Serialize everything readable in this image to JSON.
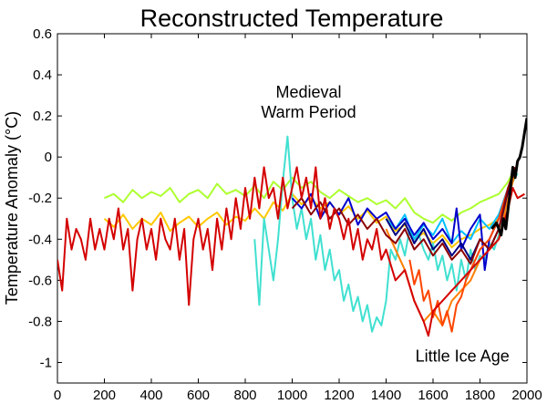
{
  "chart_data": {
    "type": "line",
    "title": "Reconstructed Temperature",
    "xlabel": "",
    "ylabel": "Temperature Anomaly (°C)",
    "xlim": [
      0,
      2000
    ],
    "ylim": [
      -1.1,
      0.6
    ],
    "x_ticks": [
      0,
      200,
      400,
      600,
      800,
      1000,
      1200,
      1400,
      1600,
      1800,
      2000
    ],
    "y_ticks": [
      -1,
      -0.8,
      -0.6,
      -0.4,
      -0.2,
      0,
      0.2,
      0.4,
      0.6
    ],
    "y_tick_labels": [
      "-1",
      "-0.8",
      "-0.6",
      "-0.4",
      "-0.2",
      "0",
      "0.2",
      "0.4",
      "0.6"
    ],
    "grid": false,
    "annotations": [
      {
        "lines": [
          "Medieval",
          "Warm Period"
        ],
        "x": 1070,
        "y": 0.29
      },
      {
        "lines": [
          "Little Ice Age"
        ],
        "x": 1725,
        "y": -0.995
      }
    ],
    "series": [
      {
        "color": "#adff2f",
        "x": [
          200,
          240,
          280,
          320,
          360,
          400,
          440,
          480,
          520,
          560,
          600,
          640,
          680,
          720,
          760,
          800,
          840,
          880,
          920,
          960,
          1000,
          1040,
          1080,
          1120,
          1160,
          1200,
          1240,
          1280,
          1320,
          1360,
          1400,
          1440,
          1480,
          1520,
          1560,
          1600,
          1640,
          1680,
          1720,
          1760,
          1800,
          1840,
          1880,
          1920,
          1950
        ],
        "values": [
          -0.2,
          -0.18,
          -0.22,
          -0.16,
          -0.2,
          -0.17,
          -0.19,
          -0.15,
          -0.22,
          -0.18,
          -0.16,
          -0.2,
          -0.13,
          -0.18,
          -0.16,
          -0.19,
          -0.14,
          -0.2,
          -0.12,
          -0.16,
          -0.1,
          -0.15,
          -0.12,
          -0.17,
          -0.2,
          -0.16,
          -0.19,
          -0.22,
          -0.2,
          -0.23,
          -0.21,
          -0.25,
          -0.2,
          -0.27,
          -0.3,
          -0.32,
          -0.28,
          -0.31,
          -0.27,
          -0.25,
          -0.22,
          -0.2,
          -0.18,
          -0.12,
          -0.05
        ]
      },
      {
        "color": "#ffc800",
        "x": [
          200,
          240,
          280,
          320,
          360,
          400,
          440,
          480,
          520,
          560,
          600,
          640,
          680,
          720,
          760,
          800,
          840,
          880,
          920,
          960,
          1000,
          1040,
          1080,
          1120,
          1160,
          1200,
          1240,
          1280,
          1320,
          1360,
          1400,
          1440,
          1480,
          1520,
          1560,
          1600,
          1640,
          1680,
          1720,
          1760,
          1800,
          1840,
          1880,
          1920,
          1950
        ],
        "values": [
          -0.3,
          -0.34,
          -0.28,
          -0.35,
          -0.3,
          -0.33,
          -0.27,
          -0.36,
          -0.32,
          -0.29,
          -0.34,
          -0.3,
          -0.27,
          -0.33,
          -0.29,
          -0.31,
          -0.25,
          -0.3,
          -0.22,
          -0.26,
          -0.18,
          -0.23,
          -0.2,
          -0.25,
          -0.22,
          -0.28,
          -0.24,
          -0.3,
          -0.26,
          -0.32,
          -0.29,
          -0.36,
          -0.33,
          -0.4,
          -0.37,
          -0.42,
          -0.38,
          -0.44,
          -0.4,
          -0.38,
          -0.35,
          -0.33,
          -0.3,
          -0.15,
          -0.05
        ]
      },
      {
        "color": "#40e0d0",
        "x": [
          840,
          860,
          880,
          900,
          920,
          940,
          960,
          980,
          1000,
          1020,
          1040,
          1060,
          1080,
          1100,
          1120,
          1140,
          1160,
          1180,
          1200,
          1220,
          1240,
          1260,
          1280,
          1300,
          1320,
          1340,
          1360,
          1380,
          1400,
          1420,
          1440,
          1460,
          1480,
          1500,
          1520,
          1540,
          1560,
          1580,
          1600,
          1620,
          1640,
          1660,
          1680,
          1700,
          1720,
          1740,
          1760,
          1780,
          1800,
          1820,
          1840,
          1860,
          1880,
          1900,
          1920,
          1940,
          1960
        ],
        "values": [
          -0.4,
          -0.72,
          -0.3,
          -0.45,
          -0.6,
          -0.4,
          -0.12,
          0.1,
          -0.2,
          -0.35,
          -0.25,
          -0.4,
          -0.3,
          -0.5,
          -0.38,
          -0.55,
          -0.45,
          -0.6,
          -0.55,
          -0.7,
          -0.62,
          -0.75,
          -0.68,
          -0.8,
          -0.72,
          -0.85,
          -0.78,
          -0.82,
          -0.7,
          -0.45,
          -0.5,
          -0.4,
          -0.48,
          -0.35,
          -0.42,
          -0.38,
          -0.45,
          -0.5,
          -0.42,
          -0.55,
          -0.48,
          -0.6,
          -0.52,
          -0.65,
          -0.5,
          -0.6,
          -0.45,
          -0.55,
          -0.48,
          -0.5,
          -0.42,
          -0.45,
          -0.38,
          -0.3,
          -0.2,
          -0.12,
          -0.08
        ]
      },
      {
        "color": "#00bfff",
        "x": [
          1400,
          1440,
          1480,
          1520,
          1560,
          1600,
          1640,
          1680,
          1720,
          1760,
          1800,
          1840,
          1880,
          1920,
          1950
        ],
        "values": [
          -0.3,
          -0.35,
          -0.28,
          -0.4,
          -0.33,
          -0.38,
          -0.3,
          -0.42,
          -0.36,
          -0.4,
          -0.3,
          -0.35,
          -0.28,
          -0.15,
          -0.05
        ]
      },
      {
        "color": "#0000cd",
        "x": [
          1000,
          1040,
          1080,
          1120,
          1160,
          1200,
          1240,
          1280,
          1320,
          1360,
          1400,
          1440,
          1480,
          1520,
          1560,
          1600,
          1640,
          1680,
          1700,
          1720,
          1760,
          1800,
          1820,
          1840,
          1880,
          1920,
          1950
        ],
        "values": [
          -0.2,
          -0.25,
          -0.18,
          -0.3,
          -0.22,
          -0.28,
          -0.2,
          -0.33,
          -0.25,
          -0.3,
          -0.27,
          -0.35,
          -0.3,
          -0.38,
          -0.32,
          -0.4,
          -0.35,
          -0.42,
          -0.25,
          -0.45,
          -0.35,
          -0.28,
          -0.55,
          -0.4,
          -0.3,
          -0.15,
          -0.05
        ]
      },
      {
        "color": "#000080",
        "x": [
          1400,
          1440,
          1480,
          1520,
          1560,
          1600,
          1640,
          1680,
          1720,
          1760,
          1800,
          1840,
          1880,
          1920,
          1950
        ],
        "values": [
          -0.3,
          -0.38,
          -0.32,
          -0.42,
          -0.35,
          -0.45,
          -0.4,
          -0.48,
          -0.42,
          -0.5,
          -0.4,
          -0.45,
          -0.35,
          -0.18,
          -0.05
        ]
      },
      {
        "color": "#ff7f00",
        "x": [
          1400,
          1440,
          1480,
          1520,
          1560,
          1600,
          1640,
          1680,
          1720,
          1760,
          1800,
          1840,
          1880,
          1920,
          1950
        ],
        "values": [
          -0.35,
          -0.45,
          -0.55,
          -0.7,
          -0.8,
          -0.75,
          -0.82,
          -0.7,
          -0.65,
          -0.6,
          -0.5,
          -0.45,
          -0.4,
          -0.2,
          -0.08
        ]
      },
      {
        "color": "#ff4500",
        "x": [
          1500,
          1520,
          1540,
          1560,
          1580,
          1600,
          1620,
          1640,
          1660,
          1680,
          1700,
          1720,
          1740,
          1760,
          1780,
          1800,
          1840,
          1880,
          1920,
          1950
        ],
        "values": [
          -0.5,
          -0.62,
          -0.55,
          -0.7,
          -0.65,
          -0.78,
          -0.7,
          -0.82,
          -0.75,
          -0.85,
          -0.72,
          -0.68,
          -0.6,
          -0.55,
          -0.5,
          -0.45,
          -0.4,
          -0.3,
          -0.15,
          -0.05
        ]
      },
      {
        "color": "#8b0000",
        "x": [
          1000,
          1040,
          1080,
          1120,
          1160,
          1200,
          1240,
          1280,
          1320,
          1360,
          1400,
          1440,
          1480,
          1520,
          1560,
          1600,
          1640,
          1680,
          1720,
          1760,
          1800,
          1840,
          1880,
          1920,
          1950
        ],
        "values": [
          -0.25,
          -0.2,
          -0.28,
          -0.22,
          -0.3,
          -0.25,
          -0.33,
          -0.28,
          -0.35,
          -0.3,
          -0.38,
          -0.42,
          -0.35,
          -0.45,
          -0.4,
          -0.48,
          -0.42,
          -0.5,
          -0.45,
          -0.52,
          -0.4,
          -0.45,
          -0.35,
          -0.15,
          -0.05
        ]
      },
      {
        "color": "#d40000",
        "x": [
          0,
          20,
          40,
          60,
          80,
          100,
          120,
          140,
          160,
          180,
          200,
          220,
          240,
          260,
          280,
          300,
          320,
          340,
          360,
          380,
          400,
          420,
          440,
          460,
          480,
          500,
          520,
          540,
          560,
          580,
          600,
          620,
          640,
          660,
          680,
          700,
          720,
          740,
          760,
          780,
          800,
          820,
          840,
          860,
          880,
          900,
          920,
          940,
          960,
          980,
          1000,
          1020,
          1040,
          1060,
          1080,
          1100,
          1120,
          1140,
          1160,
          1180,
          1200,
          1220,
          1240,
          1260,
          1280,
          1300,
          1320,
          1340,
          1360,
          1380,
          1400,
          1440,
          1480,
          1520,
          1560,
          1580,
          1600,
          1640,
          1680,
          1720,
          1760,
          1800,
          1840,
          1880,
          1920,
          1940,
          1960,
          1990
        ],
        "values": [
          -0.5,
          -0.65,
          -0.3,
          -0.45,
          -0.35,
          -0.4,
          -0.5,
          -0.3,
          -0.45,
          -0.35,
          -0.45,
          -0.3,
          -0.4,
          -0.25,
          -0.45,
          -0.35,
          -0.65,
          -0.4,
          -0.3,
          -0.45,
          -0.35,
          -0.5,
          -0.3,
          -0.4,
          -0.45,
          -0.3,
          -0.5,
          -0.35,
          -0.72,
          -0.4,
          -0.3,
          -0.45,
          -0.35,
          -0.55,
          -0.3,
          -0.45,
          -0.25,
          -0.4,
          -0.2,
          -0.35,
          -0.15,
          -0.3,
          -0.1,
          -0.25,
          -0.05,
          -0.2,
          -0.15,
          -0.3,
          -0.1,
          -0.25,
          -0.15,
          -0.05,
          -0.2,
          -0.1,
          -0.25,
          -0.05,
          -0.3,
          -0.2,
          -0.35,
          -0.25,
          -0.3,
          -0.4,
          -0.3,
          -0.45,
          -0.35,
          -0.5,
          -0.4,
          -0.45,
          -0.35,
          -0.5,
          -0.45,
          -0.6,
          -0.55,
          -0.7,
          -0.8,
          -0.87,
          -0.75,
          -0.7,
          -0.65,
          -0.6,
          -0.55,
          -0.5,
          -0.45,
          -0.4,
          -0.25,
          -0.15,
          -0.2,
          -0.18
        ]
      },
      {
        "color": "#000000",
        "x": [
          1850,
          1870,
          1890,
          1900,
          1910,
          1920,
          1930,
          1940,
          1950,
          1960,
          1970,
          1980,
          1990,
          2000
        ],
        "values": [
          -0.35,
          -0.32,
          -0.38,
          -0.3,
          -0.35,
          -0.25,
          -0.15,
          -0.05,
          -0.1,
          -0.02,
          0.0,
          0.05,
          0.12,
          0.19
        ]
      }
    ]
  }
}
